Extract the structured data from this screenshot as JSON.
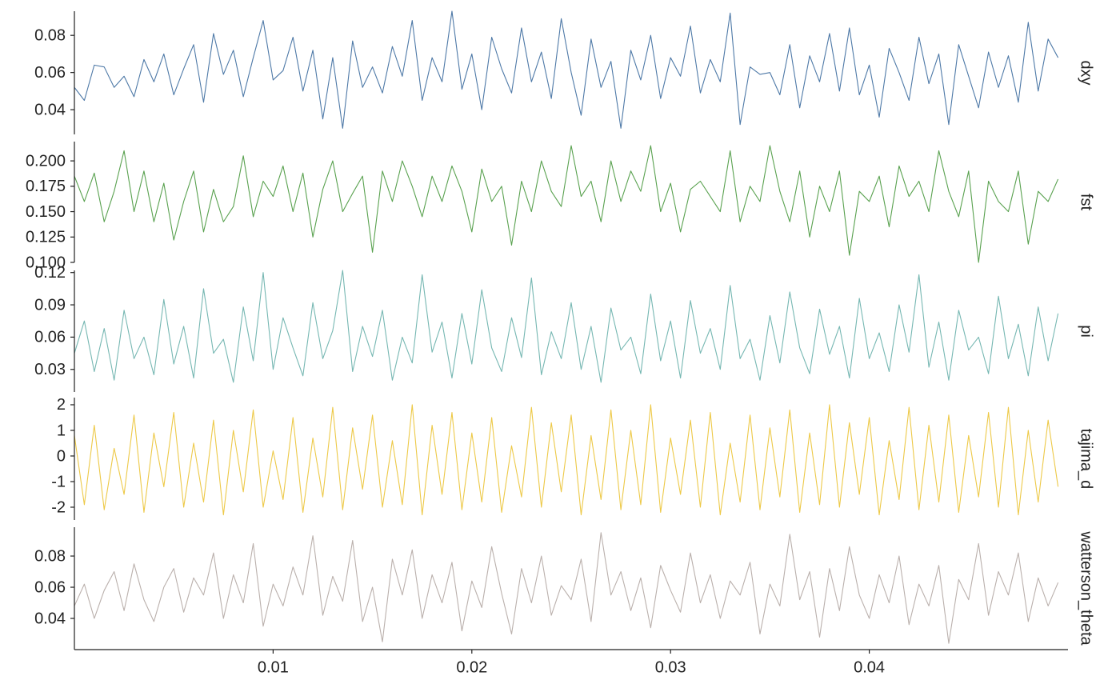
{
  "chart_data": {
    "type": "line",
    "x": [
      0,
      0.0005,
      0.001,
      0.0015,
      0.002,
      0.0025,
      0.003,
      0.0035,
      0.004,
      0.0045,
      0.005,
      0.0055,
      0.006,
      0.0065,
      0.007,
      0.0075,
      0.008,
      0.0085,
      0.009,
      0.0095,
      0.01,
      0.0105,
      0.011,
      0.0115,
      0.012,
      0.0125,
      0.013,
      0.0135,
      0.014,
      0.0145,
      0.015,
      0.0155,
      0.016,
      0.0165,
      0.017,
      0.0175,
      0.018,
      0.0185,
      0.019,
      0.0195,
      0.02,
      0.0205,
      0.021,
      0.0215,
      0.022,
      0.0225,
      0.023,
      0.0235,
      0.024,
      0.0245,
      0.025,
      0.0255,
      0.026,
      0.0265,
      0.027,
      0.0275,
      0.028,
      0.0285,
      0.029,
      0.0295,
      0.03,
      0.0305,
      0.031,
      0.0315,
      0.032,
      0.0325,
      0.033,
      0.0335,
      0.034,
      0.0345,
      0.035,
      0.0355,
      0.036,
      0.0365,
      0.037,
      0.0375,
      0.038,
      0.0385,
      0.039,
      0.0395,
      0.04,
      0.0405,
      0.041,
      0.0415,
      0.042,
      0.0425,
      0.043,
      0.0435,
      0.044,
      0.0445,
      0.045,
      0.0455,
      0.046,
      0.0465,
      0.047,
      0.0475,
      0.048,
      0.0485,
      0.049,
      0.0495
    ],
    "xlim": [
      0,
      0.05
    ],
    "xticks": [
      0.01,
      0.02,
      0.03,
      0.04
    ],
    "series": [
      {
        "name": "dxy",
        "color": "#4e79a7",
        "ylim": [
          0.0267,
          0.093
        ],
        "yticks": [
          0.04,
          0.06,
          0.08
        ],
        "values": [
          0.052,
          0.045,
          0.064,
          0.063,
          0.052,
          0.058,
          0.047,
          0.067,
          0.055,
          0.07,
          0.048,
          0.062,
          0.075,
          0.044,
          0.081,
          0.059,
          0.072,
          0.047,
          0.068,
          0.088,
          0.056,
          0.061,
          0.079,
          0.05,
          0.072,
          0.035,
          0.068,
          0.03,
          0.077,
          0.052,
          0.063,
          0.049,
          0.074,
          0.058,
          0.088,
          0.045,
          0.068,
          0.055,
          0.093,
          0.051,
          0.07,
          0.04,
          0.079,
          0.062,
          0.049,
          0.084,
          0.055,
          0.071,
          0.046,
          0.089,
          0.06,
          0.037,
          0.078,
          0.052,
          0.066,
          0.03,
          0.072,
          0.056,
          0.08,
          0.046,
          0.068,
          0.058,
          0.085,
          0.049,
          0.067,
          0.055,
          0.092,
          0.032,
          0.063,
          0.059,
          0.06,
          0.048,
          0.075,
          0.041,
          0.069,
          0.055,
          0.081,
          0.05,
          0.084,
          0.048,
          0.064,
          0.036,
          0.073,
          0.06,
          0.045,
          0.079,
          0.054,
          0.07,
          0.032,
          0.075,
          0.058,
          0.041,
          0.071,
          0.052,
          0.069,
          0.044,
          0.087,
          0.05,
          0.078,
          0.068
        ]
      },
      {
        "name": "fst",
        "color": "#59a14f",
        "ylim": [
          0.1,
          0.219
        ],
        "yticks": [
          {
            "value": 0.1,
            "label": "0.100"
          },
          0.125,
          {
            "value": 0.15,
            "label": "0.150"
          },
          0.175,
          {
            "value": 0.2,
            "label": "0.200"
          }
        ],
        "values": [
          0.185,
          0.16,
          0.188,
          0.14,
          0.17,
          0.21,
          0.15,
          0.19,
          0.14,
          0.178,
          0.122,
          0.16,
          0.19,
          0.13,
          0.172,
          0.14,
          0.155,
          0.205,
          0.145,
          0.18,
          0.165,
          0.195,
          0.15,
          0.188,
          0.125,
          0.172,
          0.2,
          0.15,
          0.168,
          0.185,
          0.11,
          0.19,
          0.16,
          0.2,
          0.175,
          0.145,
          0.185,
          0.16,
          0.195,
          0.17,
          0.13,
          0.192,
          0.16,
          0.175,
          0.117,
          0.18,
          0.15,
          0.2,
          0.17,
          0.155,
          0.215,
          0.165,
          0.18,
          0.14,
          0.2,
          0.16,
          0.19,
          0.17,
          0.215,
          0.15,
          0.178,
          0.13,
          0.172,
          0.18,
          0.165,
          0.15,
          0.21,
          0.14,
          0.175,
          0.16,
          0.215,
          0.17,
          0.14,
          0.19,
          0.125,
          0.175,
          0.15,
          0.19,
          0.107,
          0.17,
          0.16,
          0.185,
          0.135,
          0.195,
          0.165,
          0.18,
          0.15,
          0.21,
          0.17,
          0.145,
          0.19,
          0.1,
          0.18,
          0.16,
          0.15,
          0.19,
          0.118,
          0.17,
          0.16,
          0.182
        ]
      },
      {
        "name": "pi",
        "color": "#76b7b2",
        "ylim": [
          0.009,
          0.122
        ],
        "yticks": [
          0.03,
          0.06,
          0.09,
          0.12
        ],
        "values": [
          0.045,
          0.075,
          0.028,
          0.068,
          0.02,
          0.085,
          0.04,
          0.06,
          0.025,
          0.095,
          0.035,
          0.07,
          0.022,
          0.105,
          0.045,
          0.058,
          0.018,
          0.088,
          0.038,
          0.12,
          0.03,
          0.078,
          0.05,
          0.024,
          0.092,
          0.04,
          0.066,
          0.122,
          0.028,
          0.07,
          0.042,
          0.085,
          0.02,
          0.06,
          0.036,
          0.118,
          0.046,
          0.074,
          0.022,
          0.082,
          0.035,
          0.104,
          0.05,
          0.028,
          0.078,
          0.041,
          0.115,
          0.025,
          0.065,
          0.04,
          0.092,
          0.03,
          0.07,
          0.018,
          0.087,
          0.048,
          0.06,
          0.026,
          0.1,
          0.038,
          0.075,
          0.022,
          0.094,
          0.045,
          0.068,
          0.03,
          0.108,
          0.04,
          0.058,
          0.02,
          0.08,
          0.036,
          0.102,
          0.05,
          0.026,
          0.086,
          0.044,
          0.07,
          0.022,
          0.096,
          0.04,
          0.064,
          0.028,
          0.09,
          0.046,
          0.118,
          0.032,
          0.074,
          0.02,
          0.085,
          0.048,
          0.06,
          0.026,
          0.098,
          0.04,
          0.072,
          0.024,
          0.088,
          0.038,
          0.082
        ]
      },
      {
        "name": "tajima_d",
        "color": "#edc948",
        "ylim": [
          -2.5,
          2.28
        ],
        "yticks": [
          -2,
          -1,
          0,
          1,
          2
        ],
        "values": [
          0.8,
          -1.9,
          1.2,
          -2.1,
          0.3,
          -1.5,
          1.6,
          -2.2,
          0.9,
          -1.2,
          1.7,
          -2.0,
          0.5,
          -1.8,
          1.4,
          -2.3,
          1.0,
          -1.4,
          1.8,
          -2.0,
          0.2,
          -1.7,
          1.5,
          -2.2,
          0.7,
          -1.6,
          1.9,
          -2.1,
          1.1,
          -1.3,
          1.6,
          -2.0,
          0.6,
          -1.9,
          2.0,
          -2.3,
          1.2,
          -1.5,
          1.7,
          -2.1,
          0.9,
          -1.8,
          1.5,
          -2.2,
          0.4,
          -1.6,
          1.9,
          -2.0,
          1.3,
          -1.4,
          1.6,
          -2.3,
          0.8,
          -1.7,
          1.8,
          -2.1,
          1.0,
          -1.9,
          2.0,
          -2.2,
          0.7,
          -1.5,
          1.4,
          -2.0,
          1.7,
          -2.3,
          0.5,
          -1.8,
          1.6,
          -2.1,
          1.1,
          -1.6,
          1.8,
          -2.2,
          0.9,
          -1.9,
          2.0,
          -2.0,
          1.3,
          -1.5,
          1.5,
          -2.3,
          0.6,
          -1.7,
          1.9,
          -2.1,
          1.2,
          -1.8,
          1.6,
          -2.2,
          0.8,
          -1.6,
          1.7,
          -2.0,
          1.9,
          -2.3,
          1.0,
          -1.8,
          1.4,
          -1.2
        ]
      },
      {
        "name": "watterson_theta",
        "color": "#bab0ac",
        "ylim": [
          0.02,
          0.0985
        ],
        "yticks": [
          0.04,
          0.06,
          0.08
        ],
        "values": [
          0.048,
          0.062,
          0.04,
          0.058,
          0.07,
          0.045,
          0.075,
          0.052,
          0.038,
          0.06,
          0.072,
          0.044,
          0.066,
          0.055,
          0.082,
          0.04,
          0.068,
          0.05,
          0.088,
          0.035,
          0.062,
          0.048,
          0.073,
          0.055,
          0.093,
          0.042,
          0.067,
          0.051,
          0.09,
          0.038,
          0.06,
          0.025,
          0.078,
          0.055,
          0.084,
          0.04,
          0.068,
          0.05,
          0.076,
          0.032,
          0.064,
          0.047,
          0.086,
          0.056,
          0.03,
          0.072,
          0.05,
          0.08,
          0.042,
          0.061,
          0.052,
          0.078,
          0.038,
          0.095,
          0.055,
          0.07,
          0.045,
          0.066,
          0.034,
          0.074,
          0.058,
          0.044,
          0.082,
          0.05,
          0.068,
          0.04,
          0.064,
          0.055,
          0.076,
          0.03,
          0.062,
          0.048,
          0.094,
          0.052,
          0.07,
          0.028,
          0.072,
          0.045,
          0.086,
          0.055,
          0.04,
          0.068,
          0.05,
          0.08,
          0.036,
          0.062,
          0.048,
          0.074,
          0.024,
          0.065,
          0.052,
          0.088,
          0.042,
          0.07,
          0.055,
          0.082,
          0.038,
          0.066,
          0.048,
          0.063
        ]
      }
    ]
  }
}
